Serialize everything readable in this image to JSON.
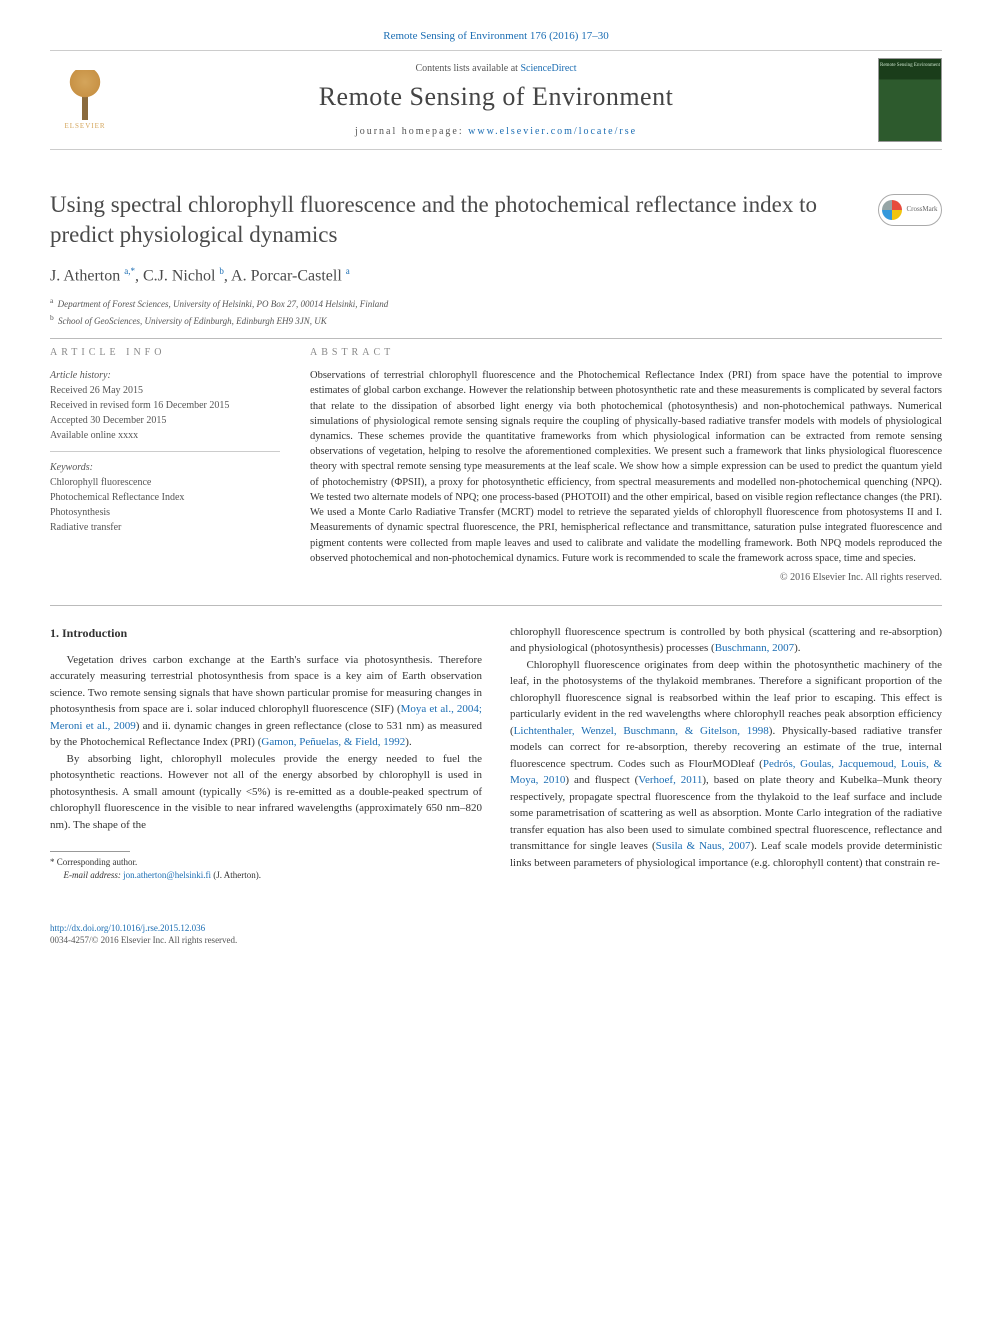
{
  "header": {
    "citation_link": "Remote Sensing of Environment 176 (2016) 17–30",
    "contents_prefix": "Contents lists available at ",
    "contents_link": "ScienceDirect",
    "journal_name": "Remote Sensing of Environment",
    "homepage_prefix": "journal homepage: ",
    "homepage_url": "www.elsevier.com/locate/rse",
    "publisher_name": "ELSEVIER",
    "cover_text": "Remote Sensing Environment"
  },
  "crossmark": {
    "label": "CrossMark"
  },
  "title": "Using spectral chlorophyll fluorescence and the photochemical reflectance index to predict physiological dynamics",
  "authors": {
    "a1_name": "J. Atherton ",
    "a1_sup": "a,",
    "a1_star": "*",
    "a2_name": ", C.J. Nichol ",
    "a2_sup": "b",
    "a3_name": ", A. Porcar-Castell ",
    "a3_sup": "a"
  },
  "affiliations": {
    "a": "Department of Forest Sciences, University of Helsinki, PO Box 27, 00014 Helsinki, Finland",
    "b": "School of GeoSciences, University of Edinburgh, Edinburgh EH9 3JN, UK"
  },
  "article_info": {
    "heading": "article info",
    "history_label": "Article history:",
    "received": "Received 26 May 2015",
    "revised": "Received in revised form 16 December 2015",
    "accepted": "Accepted 30 December 2015",
    "online": "Available online xxxx",
    "keywords_label": "Keywords:",
    "kw1": "Chlorophyll fluorescence",
    "kw2": "Photochemical Reflectance Index",
    "kw3": "Photosynthesis",
    "kw4": "Radiative transfer"
  },
  "abstract": {
    "heading": "abstract",
    "text": "Observations of terrestrial chlorophyll fluorescence and the Photochemical Reflectance Index (PRI) from space have the potential to improve estimates of global carbon exchange. However the relationship between photosynthetic rate and these measurements is complicated by several factors that relate to the dissipation of absorbed light energy via both photochemical (photosynthesis) and non-photochemical pathways. Numerical simulations of physiological remote sensing signals require the coupling of physically-based radiative transfer models with models of physiological dynamics. These schemes provide the quantitative frameworks from which physiological information can be extracted from remote sensing observations of vegetation, helping to resolve the aforementioned complexities. We present such a framework that links physiological fluorescence theory with spectral remote sensing type measurements at the leaf scale. We show how a simple expression can be used to predict the quantum yield of photochemistry (ΦPSII), a proxy for photosynthetic efficiency, from spectral measurements and modelled non-photochemical quenching (NPQ). We tested two alternate models of NPQ; one process-based (PHOTOII) and the other empirical, based on visible region reflectance changes (the PRI). We used a Monte Carlo Radiative Transfer (MCRT) model to retrieve the separated yields of chlorophyll fluorescence from photosystems II and I. Measurements of dynamic spectral fluorescence, the PRI, hemispherical reflectance and transmittance, saturation pulse integrated fluorescence and pigment contents were collected from maple leaves and used to calibrate and validate the modelling framework. Both NPQ models reproduced the observed photochemical and non-photochemical dynamics. Future work is recommended to scale the framework across space, time and species.",
    "copyright": "© 2016 Elsevier Inc. All rights reserved."
  },
  "body": {
    "section_heading": "1. Introduction",
    "p1a": "Vegetation drives carbon exchange at the Earth's surface via photosynthesis. Therefore accurately measuring terrestrial photosynthesis from space is a key aim of Earth observation science. Two remote sensing signals that have shown particular promise for measuring changes in photosynthesis from space are i. solar induced chlorophyll fluorescence (SIF) (",
    "p1_link1": "Moya et al., 2004; Meroni et al., 2009",
    "p1b": ") and ii. dynamic changes in green reflectance (close to 531 nm) as measured by the Photochemical Reflectance Index (PRI) (",
    "p1_link2": "Gamon, Peñuelas, & Field, 1992",
    "p1c": ").",
    "p2a": "By absorbing light, chlorophyll molecules provide the energy needed to fuel the photosynthetic reactions. However not all of the energy absorbed by chlorophyll is used in photosynthesis. A small amount (typically <5%) is re-emitted as a double-peaked spectrum of chlorophyll fluorescence in the visible to near infrared wavelengths (approximately 650 nm–820 nm). The shape of the",
    "p2b": "chlorophyll fluorescence spectrum is controlled by both physical (scattering and re-absorption) and physiological (photosynthesis) processes (",
    "p2_link1": "Buschmann, 2007",
    "p2c": ").",
    "p3a": "Chlorophyll fluorescence originates from deep within the photosynthetic machinery of the leaf, in the photosystems of the thylakoid membranes. Therefore a significant proportion of the chlorophyll fluorescence signal is reabsorbed within the leaf prior to escaping. This effect is particularly evident in the red wavelengths where chlorophyll reaches peak absorption efficiency (",
    "p3_link1": "Lichtenthaler, Wenzel, Buschmann, & Gitelson, 1998",
    "p3b": "). Physically-based radiative transfer models can correct for re-absorption, thereby recovering an estimate of the true, internal fluorescence spectrum. Codes such as FlourMODleaf (",
    "p3_link2": "Pedrós, Goulas, Jacquemoud, Louis, & Moya, 2010",
    "p3c": ") and fluspect (",
    "p3_link3": "Verhoef, 2011",
    "p3d": "), based on plate theory and Kubelka–Munk theory respectively, propagate spectral fluorescence from the thylakoid to the leaf surface and include some parametrisation of scattering as well as absorption. Monte Carlo integration of the radiative transfer equation has also been used to simulate combined spectral fluorescence, reflectance and transmittance for single leaves (",
    "p3_link4": "Susila & Naus, 2007",
    "p3e": "). Leaf scale models provide deterministic links between parameters of physiological importance (e.g. chlorophyll content) that constrain re-"
  },
  "footnote": {
    "corr_label": "* Corresponding author.",
    "email_label": "E-mail address: ",
    "email": "jon.atherton@helsinki.fi",
    "email_suffix": " (J. Atherton)."
  },
  "footer": {
    "doi": "http://dx.doi.org/10.1016/j.rse.2015.12.036",
    "issn_line": "0034-4257/© 2016 Elsevier Inc. All rights reserved."
  }
}
